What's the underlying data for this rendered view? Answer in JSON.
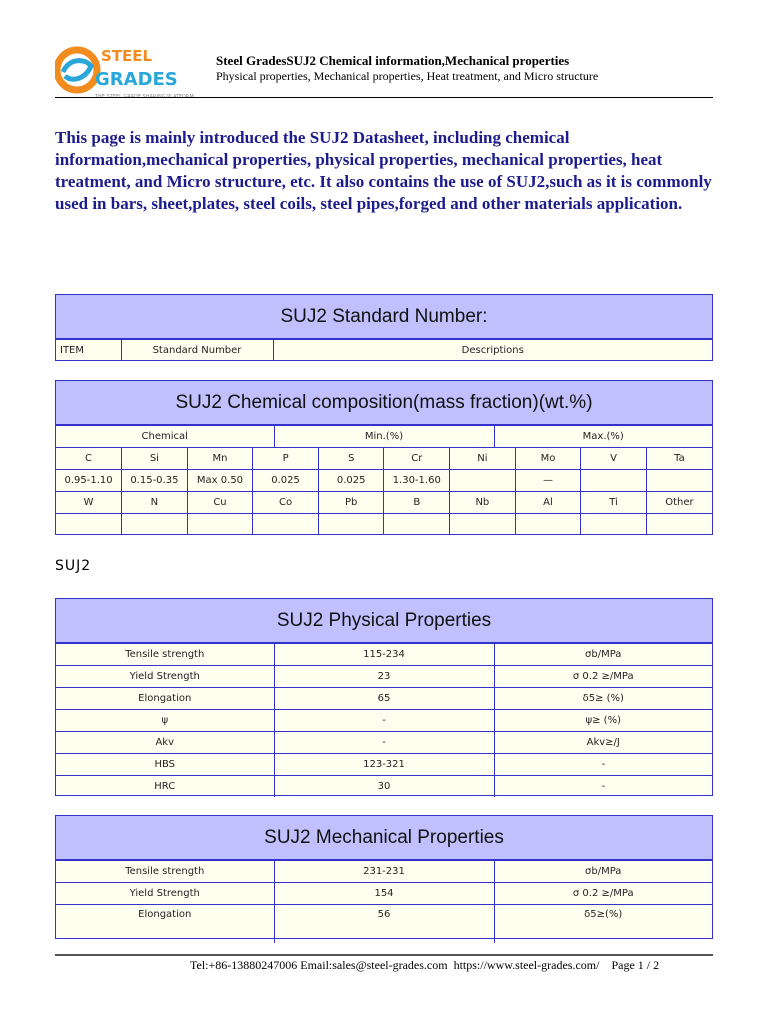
{
  "header": {
    "logo_text_top": "STEEL",
    "logo_text_bottom": "GRADES",
    "logo_tagline": "THE STEEL GRADE SHARING PLATFORM",
    "title": "Steel GradesSUJ2  Chemical information,Mechanical properties",
    "subtitle": "Physical properties, Mechanical properties, Heat treatment, and Micro structure"
  },
  "intro": "This page is mainly introduced the SUJ2 Datasheet, including chemical information,mechanical properties, physical properties, mechanical properties, heat treatment, and Micro structure, etc. It also contains the use of SUJ2,such as it is commonly used in bars, sheet,plates, steel coils, steel pipes,forged and other materials application.",
  "standard": {
    "title": "SUJ2 Standard Number:",
    "columns": [
      "ITEM",
      "Standard Number",
      "Descriptions"
    ]
  },
  "chemical": {
    "title": "SUJ2 Chemical composition(mass fraction)(wt.%)",
    "group_headers": [
      "Chemical",
      "Min.(%)",
      "Max.(%)"
    ],
    "rows": [
      [
        "C",
        "Si",
        "Mn",
        "P",
        "S",
        "Cr",
        "Ni",
        "Mo",
        "V",
        "Ta"
      ],
      [
        "0.95-1.10",
        "0.15-0.35",
        "Max 0.50",
        "0.025",
        "0.025",
        "1.30-1.60",
        "",
        "—",
        "",
        ""
      ],
      [
        "W",
        "N",
        "Cu",
        "Co",
        "Pb",
        "B",
        "Nb",
        "Al",
        "Ti",
        "Other"
      ],
      [
        "",
        "",
        "",
        "",
        "",
        "",
        "",
        "",
        "",
        ""
      ]
    ]
  },
  "grade_label": "SUJ2",
  "physical": {
    "title": "SUJ2 Physical Properties",
    "rows": [
      [
        "Tensile strength",
        "115-234",
        "σb/MPa"
      ],
      [
        "Yield Strength",
        "23",
        "σ 0.2 ≥/MPa"
      ],
      [
        "Elongation",
        "65",
        "δ5≥ (%)"
      ],
      [
        "ψ",
        "-",
        "ψ≥ (%)"
      ],
      [
        "Akv",
        "-",
        "Akv≥/J"
      ],
      [
        "HBS",
        "123-321",
        "-"
      ],
      [
        "HRC",
        "30",
        "-"
      ]
    ]
  },
  "mechanical": {
    "title": "SUJ2 Mechanical Properties",
    "rows": [
      [
        "Tensile strength",
        "231-231",
        "σb/MPa"
      ],
      [
        "Yield Strength",
        "154",
        "σ 0.2 ≥/MPa"
      ],
      [
        "Elongation",
        "56",
        "δ5≥(%)"
      ]
    ]
  },
  "footer": {
    "text": "Tel:+86-13880247006 Email:sales@steel-grades.com  https://www.steel-grades.com/    Page 1 / 2"
  },
  "colors": {
    "border": "#3333cc",
    "title_band": "#c0c0ff",
    "cell_bg": "#fffff0",
    "intro_text": "#1c1c8c",
    "logo_orange": "#f28c1e",
    "logo_blue": "#2aa7d8"
  }
}
